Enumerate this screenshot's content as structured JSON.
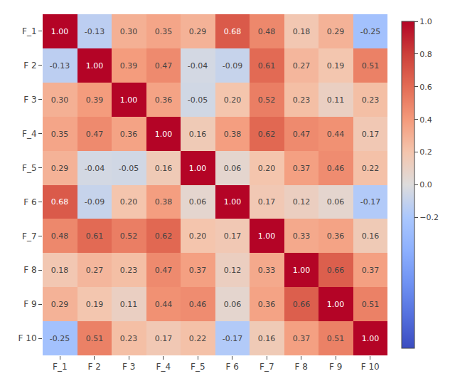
{
  "chart_data": {
    "type": "heatmap",
    "x": [
      "F_1",
      "F 2",
      "F 3",
      "F_4",
      "F_5",
      "F 6",
      "F_7",
      "F 8",
      "F 9",
      "F 10"
    ],
    "y": [
      "F_1",
      "F 2",
      "F 3",
      "F_4",
      "F_5",
      "F 6",
      "F_7",
      "F 8",
      "F 9",
      "F 10"
    ],
    "values": [
      [
        1.0,
        -0.13,
        0.3,
        0.35,
        0.29,
        0.68,
        0.48,
        0.18,
        0.29,
        -0.25
      ],
      [
        -0.13,
        1.0,
        0.39,
        0.47,
        -0.04,
        -0.09,
        0.61,
        0.27,
        0.19,
        0.51
      ],
      [
        0.3,
        0.39,
        1.0,
        0.36,
        -0.05,
        0.2,
        0.52,
        0.23,
        0.11,
        0.23
      ],
      [
        0.35,
        0.47,
        0.36,
        1.0,
        0.16,
        0.38,
        0.62,
        0.47,
        0.44,
        0.17
      ],
      [
        0.29,
        -0.04,
        -0.05,
        0.16,
        1.0,
        0.06,
        0.2,
        0.37,
        0.46,
        0.22
      ],
      [
        0.68,
        -0.09,
        0.2,
        0.38,
        0.06,
        1.0,
        0.17,
        0.12,
        0.06,
        -0.17
      ],
      [
        0.48,
        0.61,
        0.52,
        0.62,
        0.2,
        0.17,
        1.0,
        0.33,
        0.36,
        0.16
      ],
      [
        0.18,
        0.27,
        0.23,
        0.47,
        0.37,
        0.12,
        0.33,
        1.0,
        0.66,
        0.37
      ],
      [
        0.29,
        0.19,
        0.11,
        0.44,
        0.46,
        0.06,
        0.36,
        0.66,
        1.0,
        0.51
      ],
      [
        -0.25,
        0.51,
        0.23,
        0.17,
        0.22,
        -0.17,
        0.16,
        0.37,
        0.51,
        1.0
      ]
    ],
    "value_labels": [
      [
        "1.00",
        "-0.13",
        "0.30",
        "0.35",
        "0.29",
        "0.68",
        "0.48",
        "0.18",
        "0.29",
        "-0.25"
      ],
      [
        "-0.13",
        "1.00",
        "0.39",
        "0.47",
        "-0.04",
        "-0.09",
        "0.61",
        "0.27",
        "0.19",
        "0.51"
      ],
      [
        "0.30",
        "0.39",
        "1.00",
        "0.36",
        "-0.05",
        "0.20",
        "0.52",
        "0.23",
        "0.11",
        "0.23"
      ],
      [
        "0.35",
        "0.47",
        "0.36",
        "1.00",
        "0.16",
        "0.38",
        "0.62",
        "0.47",
        "0.44",
        "0.17"
      ],
      [
        "0.29",
        "-0.04",
        "-0.05",
        "0.16",
        "1.00",
        "0.06",
        "0.20",
        "0.37",
        "0.46",
        "0.22"
      ],
      [
        "0.68",
        "-0.09",
        "0.20",
        "0.38",
        "0.06",
        "1.00",
        "0.17",
        "0.12",
        "0.06",
        "-0.17"
      ],
      [
        "0.48",
        "0.61",
        "0.52",
        "0.62",
        "0.20",
        "0.17",
        "1.00",
        "0.33",
        "0.36",
        "0.16"
      ],
      [
        "0.18",
        "0.27",
        "0.23",
        "0.47",
        "0.37",
        "0.12",
        "0.33",
        "1.00",
        "0.66",
        "0.37"
      ],
      [
        "0.29",
        "0.19",
        "0.11",
        "0.44",
        "0.46",
        "0.06",
        "0.36",
        "0.66",
        "1.00",
        "0.51"
      ],
      [
        "-0.25",
        "0.51",
        "0.23",
        "0.17",
        "0.22",
        "-0.17",
        "0.16",
        "0.37",
        "0.51",
        "1.00"
      ]
    ],
    "data_labels": true,
    "color": "coolwarm",
    "colorbar_range": [
      -1.0,
      1.0
    ],
    "colorbar_ticks": [
      {
        "value": 1.0,
        "label": "1.0"
      },
      {
        "value": 0.8,
        "label": "0.8"
      },
      {
        "value": 0.6,
        "label": "0.6"
      },
      {
        "value": 0.4,
        "label": "0.4"
      },
      {
        "value": 0.2,
        "label": "0.2"
      },
      {
        "value": 0.0,
        "label": "0.0"
      },
      {
        "value": -0.2,
        "label": "−0.2"
      }
    ],
    "grid": false
  }
}
